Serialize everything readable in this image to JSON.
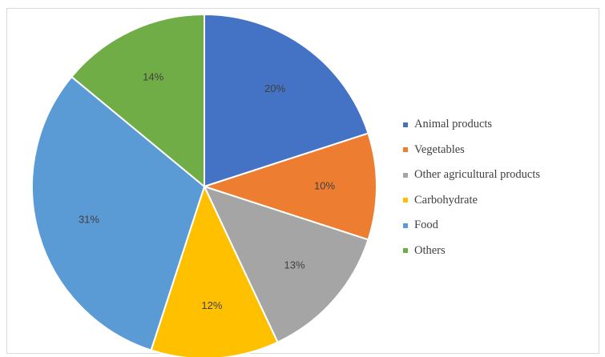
{
  "chart_data": {
    "type": "pie",
    "title": "",
    "legend_position": "right",
    "slices": [
      {
        "label": "Animal products",
        "value": 20,
        "display": "20%",
        "color": "#4472c4"
      },
      {
        "label": "Vegetables",
        "value": 10,
        "display": "10%",
        "color": "#ed7d31"
      },
      {
        "label": "Other agricultural products",
        "value": 13,
        "display": "13%",
        "color": "#a5a5a5"
      },
      {
        "label": "Carbohydrate",
        "value": 12,
        "display": "12%",
        "color": "#ffc000"
      },
      {
        "label": "Food",
        "value": 31,
        "display": "31%",
        "color": "#5b9bd5"
      },
      {
        "label": "Others",
        "value": 14,
        "display": "14%",
        "color": "#70ad47"
      }
    ]
  }
}
